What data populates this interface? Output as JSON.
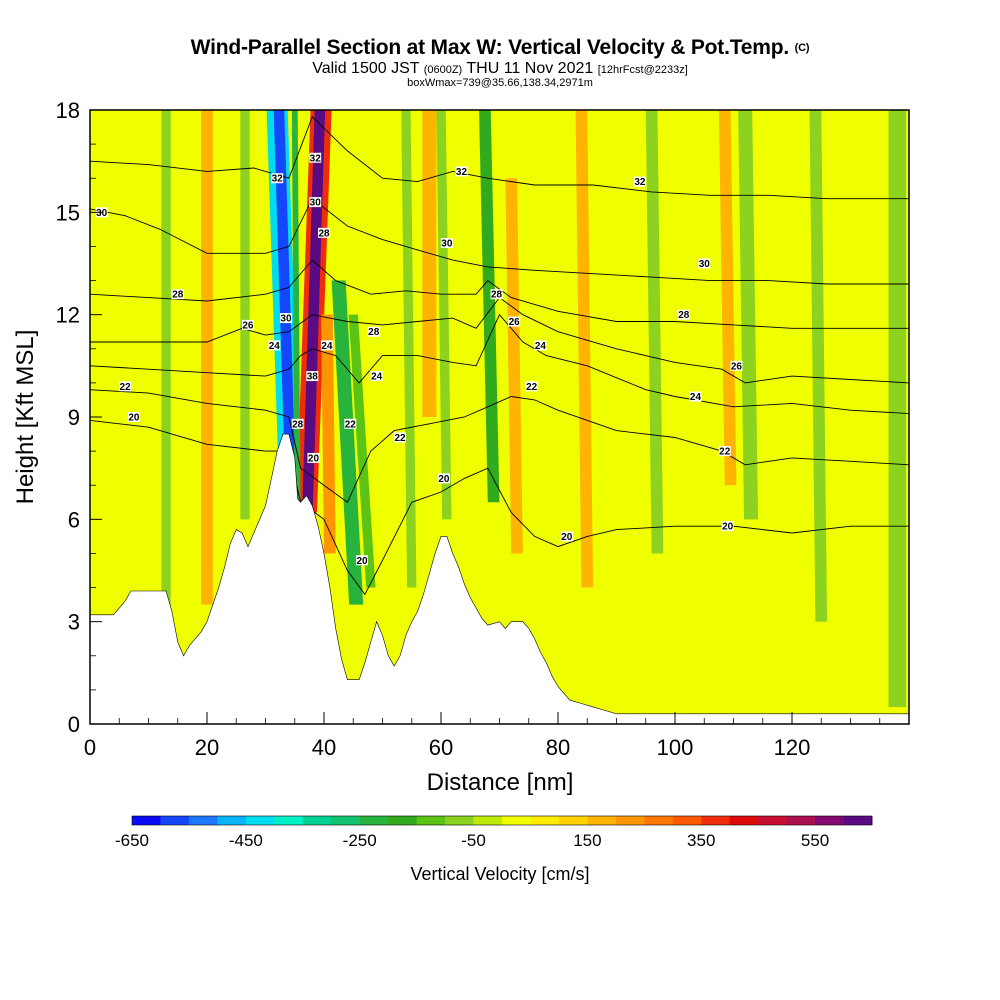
{
  "header": {
    "title": "Wind-Parallel Section at Max W: Vertical Velocity & Pot.Temp.",
    "copyright": "(C)",
    "valid_pre": "Valid 1500 JST",
    "valid_zulu": "(0600Z)",
    "valid_date": "THU 11 Nov 2021",
    "valid_fcst": "[12hrFcst@2233z]",
    "box_info": "boxWmax=739@35.66,138.34,2971m"
  },
  "chart_data": {
    "type": "heatmap",
    "xlabel": "Distance [nm]",
    "ylabel": "Height [Kft MSL]",
    "xlim": [
      0,
      140
    ],
    "ylim": [
      0,
      18
    ],
    "x_ticks": [
      0,
      20,
      40,
      60,
      80,
      100,
      120
    ],
    "y_ticks": [
      0,
      3,
      6,
      9,
      12,
      15,
      18
    ],
    "colorbar": {
      "title": "Vertical Velocity [cm/s]",
      "min": -650,
      "step": 50,
      "colors": [
        "#0a0af5",
        "#1446fa",
        "#1e78ff",
        "#0ab4fa",
        "#00dcf0",
        "#00f0c8",
        "#00d296",
        "#14c36e",
        "#28b43c",
        "#32aa1e",
        "#5ac314",
        "#8cd21e",
        "#beeb0a",
        "#f0ff00",
        "#ffeb00",
        "#ffd200",
        "#ffb400",
        "#ff9600",
        "#ff7800",
        "#ff5a00",
        "#f02d0a",
        "#dc0a0a",
        "#c80f32",
        "#aa0f50",
        "#820a6e",
        "#5a0a82"
      ],
      "tick_labels": [
        "-650",
        "-450",
        "-250",
        "-50",
        "150",
        "350",
        "550"
      ]
    },
    "terrain_kft": [
      [
        0,
        3.2
      ],
      [
        4,
        3.2
      ],
      [
        6,
        3.6
      ],
      [
        7,
        3.9
      ],
      [
        13,
        3.9
      ],
      [
        14,
        3.3
      ],
      [
        15,
        2.4
      ],
      [
        16,
        2.0
      ],
      [
        17,
        2.3
      ],
      [
        19,
        2.7
      ],
      [
        20,
        3.0
      ],
      [
        21,
        3.5
      ],
      [
        22,
        4.0
      ],
      [
        23,
        4.6
      ],
      [
        24,
        5.3
      ],
      [
        25,
        5.7
      ],
      [
        26,
        5.6
      ],
      [
        27,
        5.2
      ],
      [
        28,
        5.6
      ],
      [
        30,
        6.4
      ],
      [
        31,
        7.2
      ],
      [
        32,
        8.0
      ],
      [
        33,
        8.5
      ],
      [
        34,
        8.5
      ],
      [
        35,
        7.8
      ],
      [
        35.5,
        6.6
      ],
      [
        36,
        6.5
      ],
      [
        37,
        6.7
      ],
      [
        38,
        6.4
      ],
      [
        39,
        5.8
      ],
      [
        40,
        5.0
      ],
      [
        41,
        4.0
      ],
      [
        42,
        2.8
      ],
      [
        43,
        1.9
      ],
      [
        44,
        1.3
      ],
      [
        46,
        1.3
      ],
      [
        47,
        1.8
      ],
      [
        48,
        2.4
      ],
      [
        49,
        3.0
      ],
      [
        50,
        2.6
      ],
      [
        51,
        2.0
      ],
      [
        52,
        1.7
      ],
      [
        53,
        2.0
      ],
      [
        54,
        2.6
      ],
      [
        55,
        3.0
      ],
      [
        56,
        3.3
      ],
      [
        57,
        3.8
      ],
      [
        58,
        4.4
      ],
      [
        59,
        5.0
      ],
      [
        60,
        5.5
      ],
      [
        61,
        5.5
      ],
      [
        62,
        5.0
      ],
      [
        63,
        4.6
      ],
      [
        64,
        4.1
      ],
      [
        65,
        3.7
      ],
      [
        66,
        3.4
      ],
      [
        67,
        3.1
      ],
      [
        68,
        2.9
      ],
      [
        70,
        3.0
      ],
      [
        71,
        2.8
      ],
      [
        72,
        3.0
      ],
      [
        74,
        3.0
      ],
      [
        75,
        2.8
      ],
      [
        76,
        2.5
      ],
      [
        77,
        2.1
      ],
      [
        78,
        1.8
      ],
      [
        79,
        1.4
      ],
      [
        80,
        1.1
      ],
      [
        81,
        0.9
      ],
      [
        82,
        0.7
      ],
      [
        84,
        0.6
      ],
      [
        86,
        0.5
      ],
      [
        88,
        0.4
      ],
      [
        90,
        0.3
      ],
      [
        140,
        0.3
      ]
    ],
    "vv_bands": [
      {
        "x0": 34.0,
        "x1": 32.0,
        "y0": 7.5,
        "y1": 18,
        "half_width": 1.8,
        "value": -450
      },
      {
        "x0": 34.2,
        "x1": 32.3,
        "y0": 7.5,
        "y1": 18,
        "half_width": 0.9,
        "value": -600
      },
      {
        "x0": 37.0,
        "x1": 39.5,
        "y0": 6.2,
        "y1": 18,
        "half_width": 1.8,
        "value": 350
      },
      {
        "x0": 37.2,
        "x1": 39.3,
        "y0": 6.4,
        "y1": 18,
        "half_width": 0.9,
        "value": 600
      },
      {
        "x0": 35.5,
        "x1": 35.0,
        "y0": 6.0,
        "y1": 18,
        "half_width": 0.5,
        "value": -250
      },
      {
        "x0": 45.5,
        "x1": 42.5,
        "y0": 3.5,
        "y1": 13,
        "half_width": 1.2,
        "value": -250
      },
      {
        "x0": 41.0,
        "x1": 40.5,
        "y0": 5.0,
        "y1": 12,
        "half_width": 1.0,
        "value": 200
      },
      {
        "x0": 48.0,
        "x1": 45.0,
        "y0": 4.0,
        "y1": 12,
        "half_width": 0.8,
        "value": -150
      },
      {
        "x0": 69.0,
        "x1": 67.5,
        "y0": 6.5,
        "y1": 18,
        "half_width": 1.0,
        "value": -200
      },
      {
        "x0": 73.0,
        "x1": 72.0,
        "y0": 5.0,
        "y1": 16,
        "half_width": 1.0,
        "value": 150
      },
      {
        "x0": 61.0,
        "x1": 60.0,
        "y0": 6.0,
        "y1": 18,
        "half_width": 0.8,
        "value": -100
      },
      {
        "x0": 58.0,
        "x1": 58.0,
        "y0": 9.0,
        "y1": 18,
        "half_width": 1.2,
        "value": 150
      },
      {
        "x0": 109.5,
        "x1": 108.5,
        "y0": 7.0,
        "y1": 18,
        "half_width": 1.0,
        "value": 150
      },
      {
        "x0": 113.0,
        "x1": 112.0,
        "y0": 6.0,
        "y1": 18,
        "half_width": 1.2,
        "value": -100
      },
      {
        "x0": 13.0,
        "x1": 13.0,
        "y0": 3.0,
        "y1": 18,
        "half_width": 0.8,
        "value": -100
      },
      {
        "x0": 20.0,
        "x1": 20.0,
        "y0": 3.5,
        "y1": 18,
        "half_width": 1.0,
        "value": 150
      },
      {
        "x0": 26.5,
        "x1": 26.5,
        "y0": 6.0,
        "y1": 18,
        "half_width": 0.8,
        "value": -100
      },
      {
        "x0": 55.0,
        "x1": 54.0,
        "y0": 4.0,
        "y1": 18,
        "half_width": 0.8,
        "value": -100
      },
      {
        "x0": 85.0,
        "x1": 84.0,
        "y0": 4.0,
        "y1": 18,
        "half_width": 1.0,
        "value": 150
      },
      {
        "x0": 97.0,
        "x1": 96.0,
        "y0": 5.0,
        "y1": 18,
        "half_width": 1.0,
        "value": -100
      },
      {
        "x0": 125.0,
        "x1": 124.0,
        "y0": 3.0,
        "y1": 18,
        "half_width": 1.0,
        "value": -100
      },
      {
        "x0": 138.0,
        "x1": 138.0,
        "y0": 0.5,
        "y1": 18,
        "half_width": 1.5,
        "value": -100
      }
    ],
    "theta_contours": [
      {
        "label": "20",
        "levels": [
          [
            0,
            8.9
          ],
          [
            10,
            8.7
          ],
          [
            20,
            8.2
          ],
          [
            30,
            8.0
          ],
          [
            34,
            8.0
          ],
          [
            36,
            6.5
          ],
          [
            40,
            6.0
          ],
          [
            44,
            4.5
          ],
          [
            47,
            3.8
          ],
          [
            50,
            4.8
          ],
          [
            55,
            6.5
          ],
          [
            60,
            6.8
          ],
          [
            64,
            7.2
          ],
          [
            68,
            7.5
          ],
          [
            72,
            6.2
          ],
          [
            76,
            5.5
          ],
          [
            80,
            5.2
          ],
          [
            85,
            5.5
          ],
          [
            90,
            5.7
          ],
          [
            100,
            5.8
          ],
          [
            110,
            5.8
          ],
          [
            120,
            5.6
          ],
          [
            130,
            5.8
          ],
          [
            140,
            5.8
          ]
        ]
      },
      {
        "label": "22",
        "levels": [
          [
            0,
            9.8
          ],
          [
            10,
            9.7
          ],
          [
            20,
            9.4
          ],
          [
            30,
            9.2
          ],
          [
            34,
            9.0
          ],
          [
            36,
            7.5
          ],
          [
            40,
            7.0
          ],
          [
            44,
            6.5
          ],
          [
            48,
            8.0
          ],
          [
            52,
            8.6
          ],
          [
            58,
            8.8
          ],
          [
            64,
            9.0
          ],
          [
            68,
            9.3
          ],
          [
            72,
            9.6
          ],
          [
            76,
            9.5
          ],
          [
            80,
            9.2
          ],
          [
            90,
            8.6
          ],
          [
            100,
            8.4
          ],
          [
            108,
            8.0
          ],
          [
            112,
            7.6
          ],
          [
            120,
            7.8
          ],
          [
            130,
            7.7
          ],
          [
            140,
            7.6
          ]
        ]
      },
      {
        "label": "24",
        "levels": [
          [
            0,
            10.5
          ],
          [
            10,
            10.4
          ],
          [
            20,
            10.3
          ],
          [
            30,
            10.2
          ],
          [
            34,
            10.4
          ],
          [
            36,
            10.8
          ],
          [
            38,
            11.0
          ],
          [
            42,
            10.8
          ],
          [
            46,
            10.0
          ],
          [
            50,
            10.8
          ],
          [
            56,
            10.8
          ],
          [
            62,
            10.6
          ],
          [
            66,
            10.5
          ],
          [
            70,
            12.0
          ],
          [
            74,
            11.2
          ],
          [
            78,
            10.8
          ],
          [
            85,
            10.5
          ],
          [
            95,
            9.8
          ],
          [
            100,
            9.6
          ],
          [
            110,
            9.3
          ],
          [
            120,
            9.4
          ],
          [
            130,
            9.2
          ],
          [
            140,
            9.1
          ]
        ]
      },
      {
        "label": "26",
        "levels": [
          [
            0,
            11.2
          ],
          [
            10,
            11.2
          ],
          [
            20,
            11.2
          ],
          [
            26,
            11.6
          ],
          [
            30,
            11.4
          ],
          [
            34,
            11.5
          ],
          [
            38,
            12.0
          ],
          [
            44,
            11.8
          ],
          [
            50,
            11.7
          ],
          [
            56,
            11.8
          ],
          [
            62,
            11.9
          ],
          [
            66,
            11.6
          ],
          [
            70,
            12.5
          ],
          [
            74,
            12.0
          ],
          [
            80,
            11.5
          ],
          [
            90,
            11.0
          ],
          [
            100,
            10.6
          ],
          [
            108,
            10.4
          ],
          [
            112,
            10.0
          ],
          [
            120,
            10.2
          ],
          [
            130,
            10.1
          ],
          [
            140,
            10.0
          ]
        ]
      },
      {
        "label": "28",
        "levels": [
          [
            0,
            12.6
          ],
          [
            10,
            12.5
          ],
          [
            20,
            12.4
          ],
          [
            30,
            12.6
          ],
          [
            34,
            12.8
          ],
          [
            38,
            13.6
          ],
          [
            42,
            13.0
          ],
          [
            48,
            12.6
          ],
          [
            54,
            12.7
          ],
          [
            60,
            12.6
          ],
          [
            66,
            12.6
          ],
          [
            68,
            13.0
          ],
          [
            72,
            12.5
          ],
          [
            80,
            12.1
          ],
          [
            90,
            11.8
          ],
          [
            100,
            11.8
          ],
          [
            110,
            11.7
          ],
          [
            120,
            11.6
          ],
          [
            130,
            11.6
          ],
          [
            140,
            11.6
          ]
        ]
      },
      {
        "label": "30",
        "levels": [
          [
            0,
            15.1
          ],
          [
            6,
            14.9
          ],
          [
            12,
            14.5
          ],
          [
            20,
            13.8
          ],
          [
            30,
            13.8
          ],
          [
            34,
            14.0
          ],
          [
            38,
            15.4
          ],
          [
            44,
            14.6
          ],
          [
            50,
            14.2
          ],
          [
            56,
            13.9
          ],
          [
            62,
            13.6
          ],
          [
            68,
            13.4
          ],
          [
            76,
            13.3
          ],
          [
            86,
            13.2
          ],
          [
            96,
            13.1
          ],
          [
            106,
            13.0
          ],
          [
            116,
            13.0
          ],
          [
            126,
            12.9
          ],
          [
            140,
            12.9
          ]
        ]
      },
      {
        "label": "32",
        "levels": [
          [
            0,
            16.5
          ],
          [
            10,
            16.4
          ],
          [
            20,
            16.2
          ],
          [
            28,
            16.3
          ],
          [
            34,
            16.0
          ],
          [
            38,
            17.8
          ],
          [
            44,
            16.8
          ],
          [
            50,
            16.0
          ],
          [
            56,
            15.9
          ],
          [
            62,
            16.2
          ],
          [
            68,
            16.0
          ],
          [
            76,
            15.8
          ],
          [
            86,
            15.8
          ],
          [
            96,
            15.6
          ],
          [
            106,
            15.5
          ],
          [
            116,
            15.5
          ],
          [
            126,
            15.4
          ],
          [
            140,
            15.4
          ]
        ]
      }
    ],
    "contour_labels": [
      {
        "text": "30",
        "x": 2,
        "y": 15.0
      },
      {
        "text": "28",
        "x": 15,
        "y": 12.6
      },
      {
        "text": "22",
        "x": 6,
        "y": 9.9
      },
      {
        "text": "20",
        "x": 7.5,
        "y": 9.0
      },
      {
        "text": "26",
        "x": 27,
        "y": 11.7
      },
      {
        "text": "24",
        "x": 31.5,
        "y": 11.1
      },
      {
        "text": "30",
        "x": 33.5,
        "y": 11.9
      },
      {
        "text": "32",
        "x": 32,
        "y": 16.0
      },
      {
        "text": "32",
        "x": 38.5,
        "y": 16.6
      },
      {
        "text": "30",
        "x": 38.5,
        "y": 15.3
      },
      {
        "text": "28",
        "x": 40,
        "y": 14.4
      },
      {
        "text": "24",
        "x": 40.5,
        "y": 11.1
      },
      {
        "text": "38",
        "x": 38,
        "y": 10.2
      },
      {
        "text": "28",
        "x": 35.5,
        "y": 8.8
      },
      {
        "text": "20",
        "x": 38.2,
        "y": 7.8
      },
      {
        "text": "22",
        "x": 44.5,
        "y": 8.8
      },
      {
        "text": "24",
        "x": 49,
        "y": 10.2
      },
      {
        "text": "28",
        "x": 48.5,
        "y": 11.5
      },
      {
        "text": "20",
        "x": 46.5,
        "y": 4.8
      },
      {
        "text": "22",
        "x": 53,
        "y": 8.4
      },
      {
        "text": "20",
        "x": 60.5,
        "y": 7.2
      },
      {
        "text": "30",
        "x": 61,
        "y": 14.1
      },
      {
        "text": "32",
        "x": 63.5,
        "y": 16.2
      },
      {
        "text": "28",
        "x": 69.5,
        "y": 12.6
      },
      {
        "text": "26",
        "x": 72.5,
        "y": 11.8
      },
      {
        "text": "24",
        "x": 77,
        "y": 11.1
      },
      {
        "text": "22",
        "x": 75.5,
        "y": 9.9
      },
      {
        "text": "20",
        "x": 81.5,
        "y": 5.5
      },
      {
        "text": "32",
        "x": 94,
        "y": 15.9
      },
      {
        "text": "30",
        "x": 105,
        "y": 13.5
      },
      {
        "text": "28",
        "x": 101.5,
        "y": 12.0
      },
      {
        "text": "26",
        "x": 110.5,
        "y": 10.5
      },
      {
        "text": "24",
        "x": 103.5,
        "y": 9.6
      },
      {
        "text": "22",
        "x": 108.5,
        "y": 8.0
      },
      {
        "text": "20",
        "x": 109,
        "y": 5.8
      }
    ]
  }
}
